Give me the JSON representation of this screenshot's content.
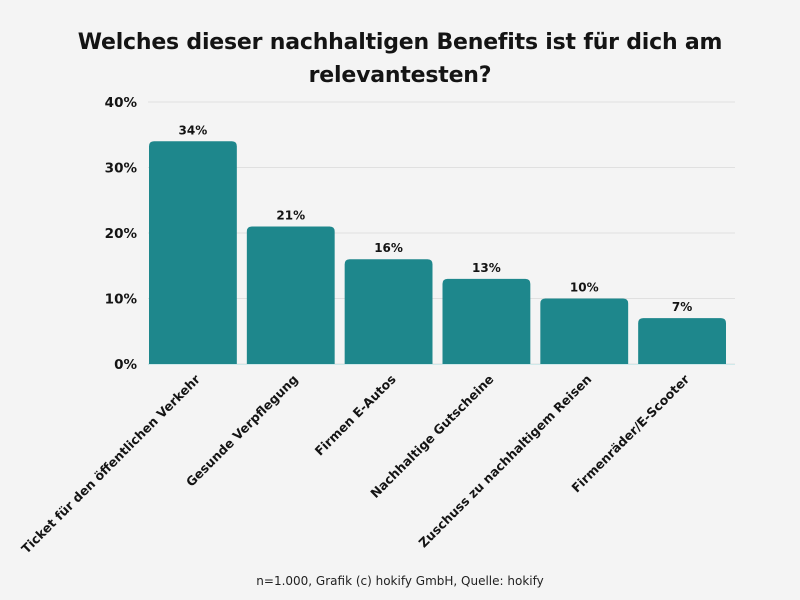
{
  "chart_data": {
    "type": "bar",
    "title": "Welches dieser nachhaltigen Benefits ist für dich am relevantesten?",
    "title_lines": [
      "Welches dieser nachhaltigen Benefits ist für dich am",
      "relevantesten?"
    ],
    "xlabel": "",
    "ylabel": "",
    "categories": [
      "Ticket für den öffentlichen Verkehr",
      "Gesunde Verpflegung",
      "Firmen E-Autos",
      "Nachhaltige Gutscheine",
      "Zuschuss zu nachhaltigem Reisen",
      "Firmenräder/E-Scooter"
    ],
    "values": [
      34,
      21,
      16,
      13,
      10,
      7
    ],
    "data_labels": [
      "34%",
      "21%",
      "16%",
      "13%",
      "10%",
      "7%"
    ],
    "ylim": [
      0,
      40
    ],
    "yticks": [
      0,
      10,
      20,
      30,
      40
    ],
    "ytick_labels": [
      "0%",
      "10%",
      "20%",
      "30%",
      "40%"
    ],
    "grid": true,
    "legend": "none",
    "colors": {
      "bar": "#1e878c",
      "grid": "#e0e0e0",
      "background": "#f4f4f4",
      "text": "#141414"
    }
  },
  "footer": "n=1.000, Grafik (c) hokify GmbH, Quelle: hokify"
}
